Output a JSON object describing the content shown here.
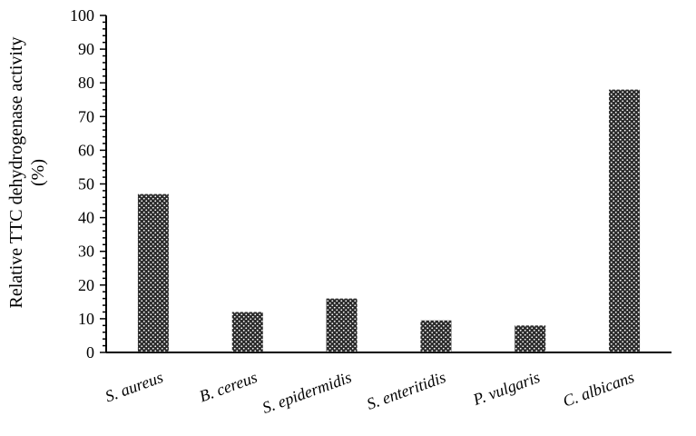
{
  "chart_data": {
    "type": "bar",
    "title": "",
    "xlabel": "",
    "ylabel": "Relative TTC dehydrogenase activity",
    "ylabel_line2": "(%)",
    "categories": [
      "S. aureus",
      "B. cereus",
      "S. epidermidis",
      "S. enteritidis",
      "P. vulgaris",
      "C. albicans"
    ],
    "values": [
      47,
      12,
      16,
      9.5,
      8,
      78
    ],
    "ylim": [
      0,
      100
    ],
    "yticks": [
      0,
      10,
      20,
      30,
      40,
      50,
      60,
      70,
      80,
      90,
      100
    ],
    "grid": false,
    "legend": "none",
    "bar_fill": "#2b2b2b",
    "bar_pattern": "checkered dots"
  }
}
